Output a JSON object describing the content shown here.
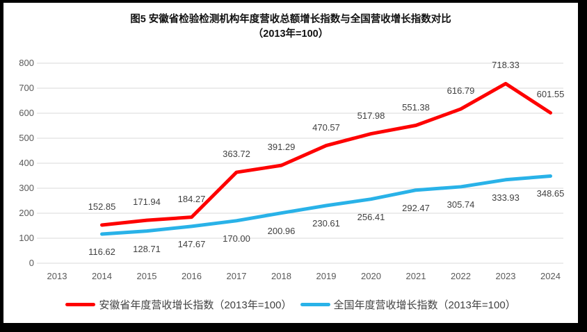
{
  "title": {
    "line1": "图5  安徽省检验检测机构年度营收总额增长指数与全国营收增长指数对比",
    "line2": "（2013年=100）"
  },
  "chart_data": {
    "type": "line",
    "x": [
      2013,
      2014,
      2015,
      2016,
      2017,
      2018,
      2019,
      2020,
      2021,
      2022,
      2023,
      2024
    ],
    "series": [
      {
        "name": "安徽省年度营收增长指数（2013年=100）",
        "color": "#fe0000",
        "start_year": 2014,
        "values": [
          152.85,
          171.94,
          184.27,
          363.72,
          391.29,
          470.57,
          517.98,
          551.38,
          616.79,
          718.33,
          601.55
        ],
        "label_position": "above"
      },
      {
        "name": "全国年度营收增长指数（2013年=100）",
        "color": "#29b2e8",
        "start_year": 2014,
        "values": [
          116.62,
          128.71,
          147.67,
          170.0,
          200.96,
          230.61,
          256.41,
          292.47,
          305.74,
          333.93,
          348.65
        ],
        "label_position": "below"
      }
    ],
    "ylim": [
      0,
      800
    ],
    "yticks": [
      0,
      100,
      200,
      300,
      400,
      500,
      600,
      700,
      800
    ],
    "grid": "horizontal",
    "gridline_color": "#d9d9d9",
    "tick_label_color": "#595959",
    "data_label_color": "#404040",
    "legend_position": "bottom"
  }
}
